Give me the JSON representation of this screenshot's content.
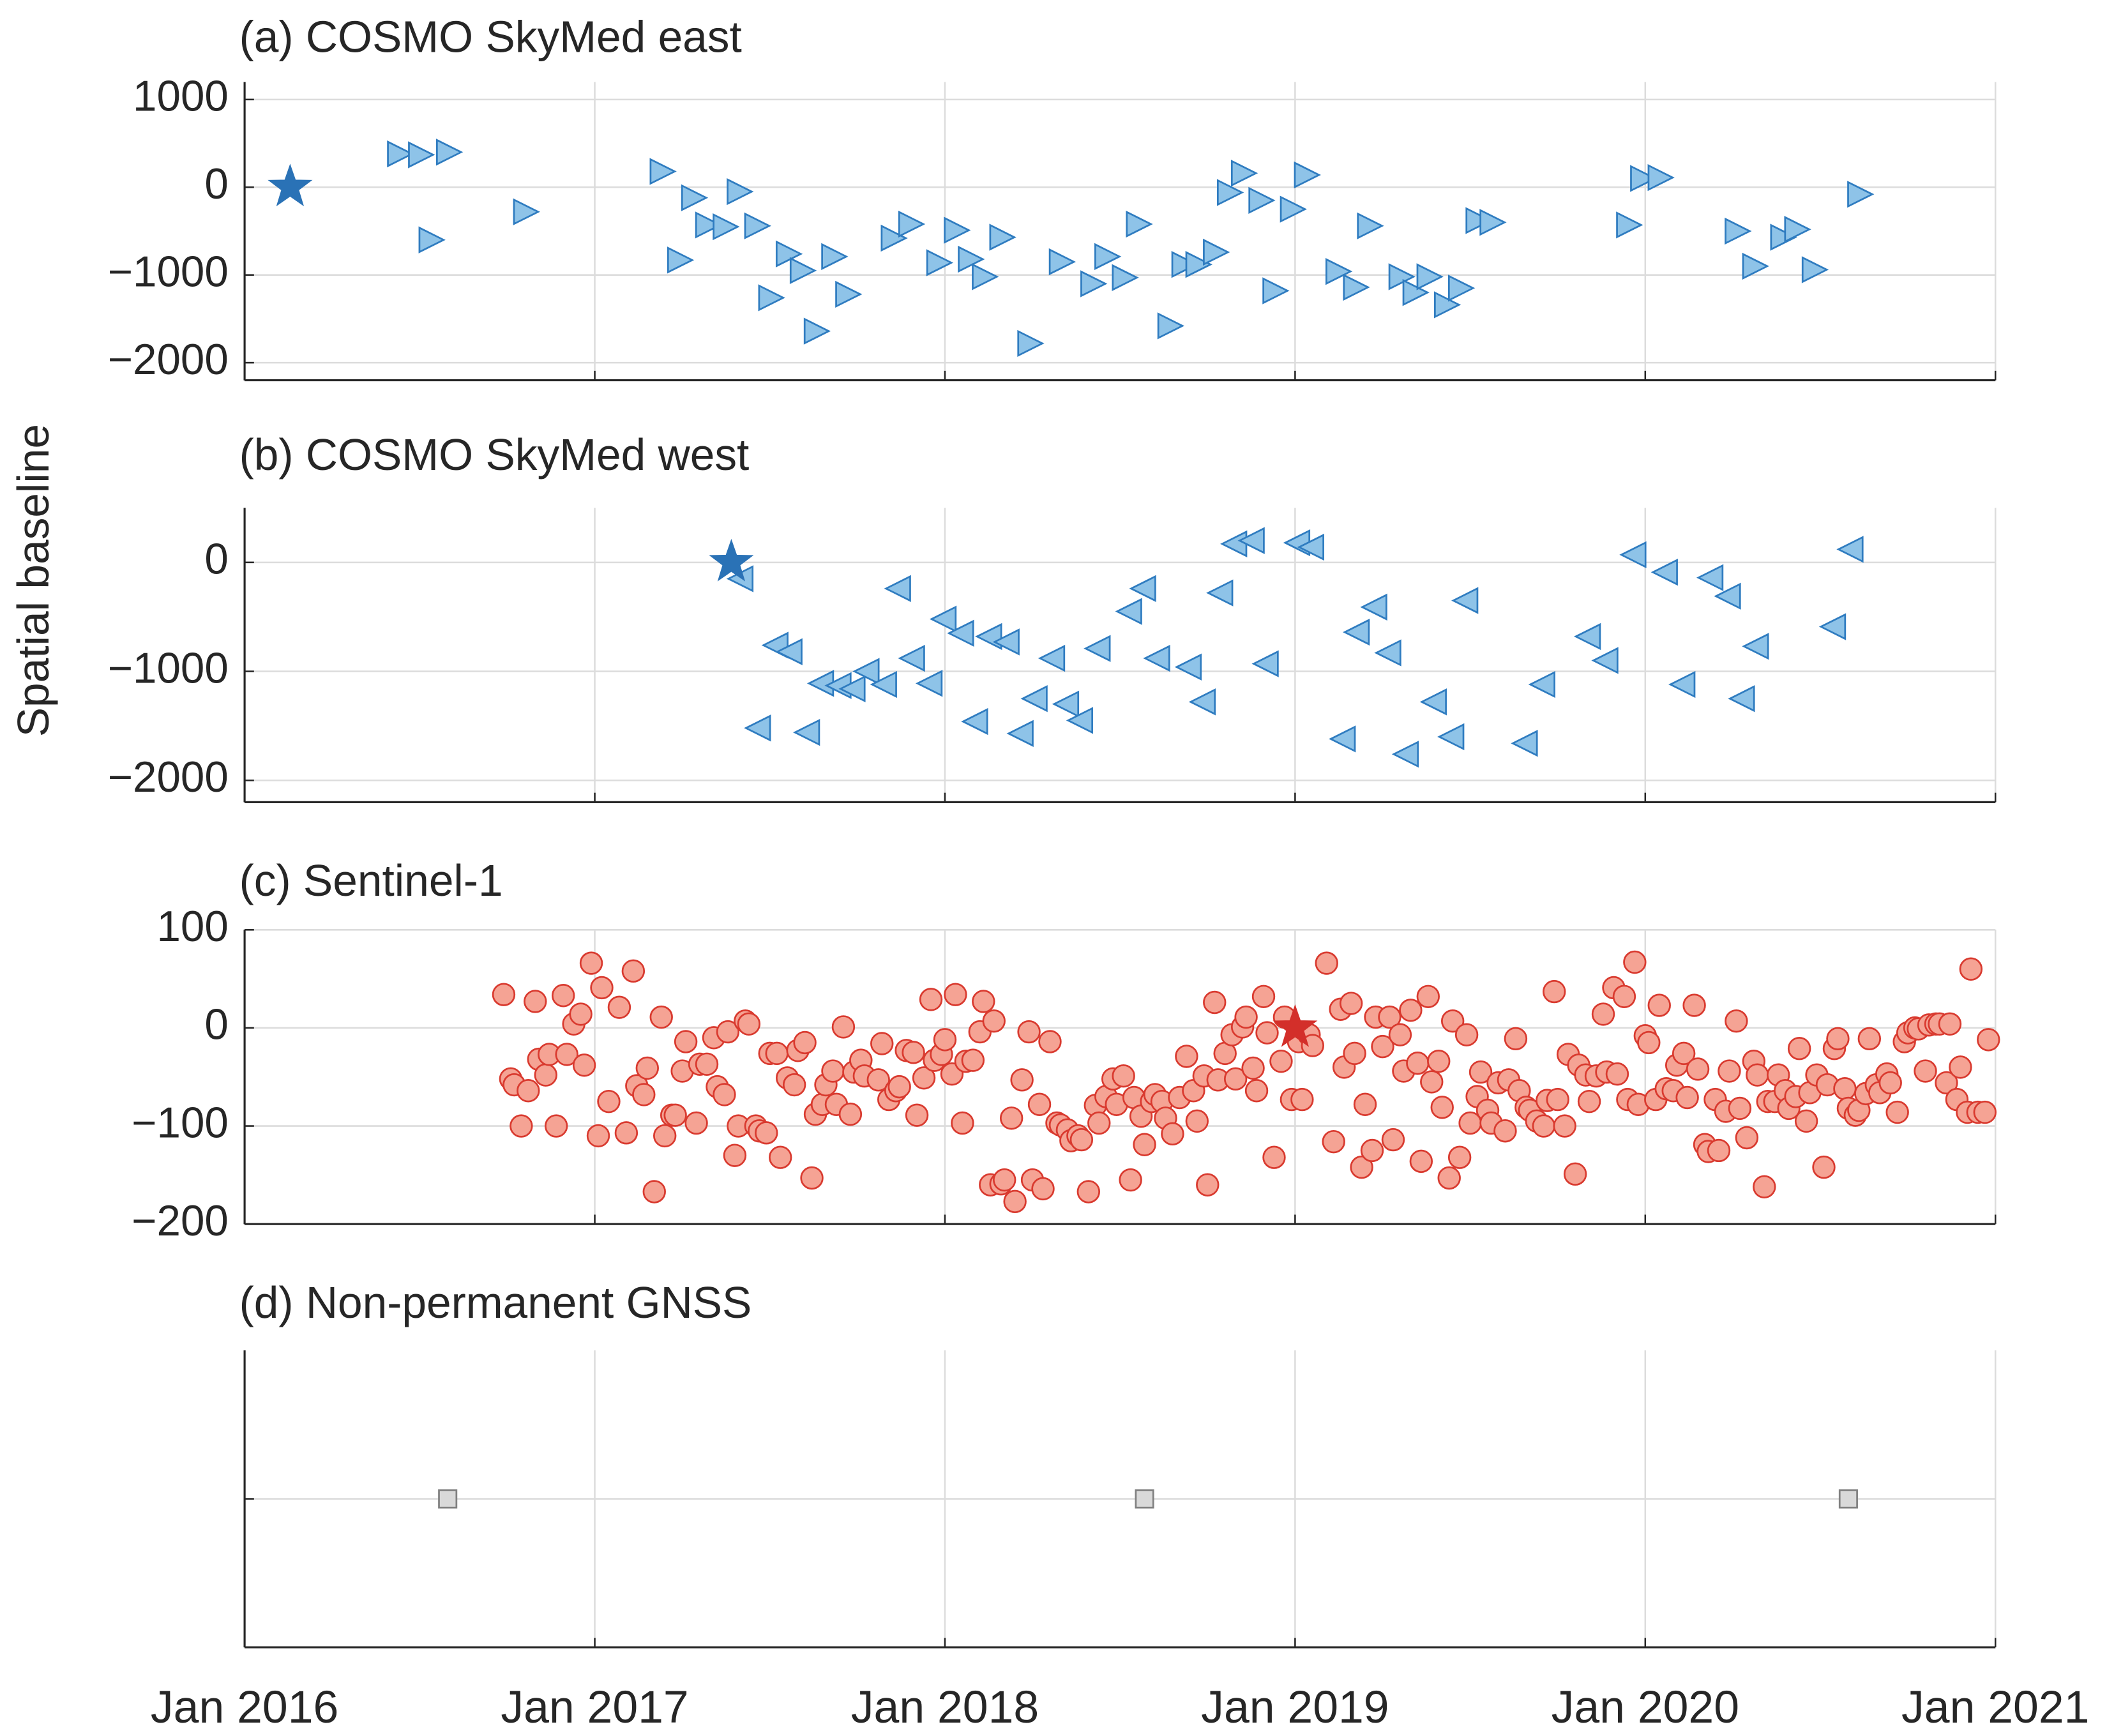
{
  "ylabel": "Spatial baseline",
  "xlim": [
    2016,
    2021
  ],
  "xticks": [
    {
      "value": 2016,
      "label": "Jan 2016"
    },
    {
      "value": 2017,
      "label": "Jan 2017"
    },
    {
      "value": 2018,
      "label": "Jan 2018"
    },
    {
      "value": 2019,
      "label": "Jan 2019"
    },
    {
      "value": 2020,
      "label": "Jan 2020"
    },
    {
      "value": 2021,
      "label": "Jan 2021"
    }
  ],
  "chart_data": [
    {
      "type": "scatter",
      "title": "(a) COSMO SkyMed east",
      "marker": "triangle-right",
      "color": "#8ec3e8",
      "edgecolor": "#2f7cc0",
      "grid": true,
      "ylim": [
        -2200,
        1200
      ],
      "yticks": [
        {
          "value": -2000,
          "label": "−2000"
        },
        {
          "value": -1000,
          "label": "−1000"
        },
        0,
        1000
      ],
      "reference": {
        "x": 2016.13,
        "y": 0,
        "color": "#2a72b6"
      },
      "x": [
        2016.44,
        2016.5,
        2016.58,
        2016.53,
        2016.8,
        2017.19,
        2017.24,
        2017.28,
        2017.32,
        2017.37,
        2017.41,
        2017.46,
        2017.5,
        2017.55,
        2017.59,
        2017.63,
        2017.68,
        2017.72,
        2017.85,
        2017.9,
        2017.98,
        2018.03,
        2018.07,
        2018.11,
        2018.16,
        2018.24,
        2018.33,
        2018.42,
        2018.46,
        2018.51,
        2018.55,
        2018.64,
        2018.68,
        2018.72,
        2018.77,
        2018.81,
        2018.85,
        2018.9,
        2018.94,
        2018.99,
        2019.03,
        2019.12,
        2019.17,
        2019.21,
        2019.3,
        2019.34,
        2019.38,
        2019.43,
        2019.47,
        2019.52,
        2019.56,
        2019.95,
        2019.99,
        2020.04,
        2020.26,
        2020.31,
        2020.39,
        2020.43,
        2020.48,
        2020.61
      ],
      "values": [
        380,
        370,
        400,
        -600,
        -280,
        180,
        -830,
        -120,
        -430,
        -450,
        -50,
        -440,
        -1260,
        -760,
        -950,
        -1640,
        -790,
        -1220,
        -580,
        -420,
        -860,
        -490,
        -820,
        -1020,
        -570,
        -1780,
        -850,
        -1100,
        -790,
        -1030,
        -420,
        -1580,
        -880,
        -880,
        -740,
        -60,
        160,
        -150,
        -1180,
        -250,
        140,
        -960,
        -1140,
        -440,
        -1020,
        -1200,
        -1020,
        -1340,
        -1150,
        -380,
        -400,
        -430,
        100,
        110,
        -500,
        -900,
        -570,
        -480,
        -940,
        -80
      ]
    },
    {
      "type": "scatter",
      "title": "(b) COSMO SkyMed west",
      "marker": "triangle-left",
      "color": "#8ec3e8",
      "edgecolor": "#2f7cc0",
      "grid": true,
      "ylim": [
        -2200,
        500
      ],
      "yticks": [
        {
          "value": -2000,
          "label": "−2000"
        },
        {
          "value": -1000,
          "label": "−1000"
        },
        0
      ],
      "reference": {
        "x": 2017.39,
        "y": 0,
        "color": "#2a72b6"
      },
      "x": [
        2017.42,
        2017.47,
        2017.52,
        2017.56,
        2017.61,
        2017.65,
        2017.7,
        2017.74,
        2017.78,
        2017.83,
        2017.87,
        2017.91,
        2017.96,
        2018.0,
        2018.05,
        2018.09,
        2018.13,
        2018.18,
        2018.22,
        2018.26,
        2018.31,
        2018.35,
        2018.39,
        2018.44,
        2018.53,
        2018.57,
        2018.61,
        2018.7,
        2018.74,
        2018.79,
        2018.83,
        2018.88,
        2018.92,
        2019.01,
        2019.05,
        2019.14,
        2019.18,
        2019.23,
        2019.27,
        2019.32,
        2019.4,
        2019.45,
        2019.49,
        2019.66,
        2019.71,
        2019.84,
        2019.89,
        2019.97,
        2020.06,
        2020.11,
        2020.19,
        2020.24,
        2020.28,
        2020.32,
        2020.54,
        2020.59
      ],
      "values": [
        -150,
        -1520,
        -760,
        -820,
        -1560,
        -1110,
        -1130,
        -1160,
        -1000,
        -1120,
        -240,
        -880,
        -1110,
        -520,
        -650,
        -1460,
        -680,
        -730,
        -1570,
        -1250,
        -880,
        -1300,
        -1450,
        -790,
        -450,
        -240,
        -880,
        -960,
        -1280,
        -280,
        170,
        200,
        -930,
        180,
        140,
        -1620,
        -640,
        -410,
        -830,
        -1760,
        -1280,
        -1600,
        -350,
        -1660,
        -1120,
        -680,
        -900,
        70,
        -90,
        -1120,
        -140,
        -310,
        -1250,
        -770,
        -590,
        120
      ]
    },
    {
      "type": "scatter",
      "title": "(c) Sentinel-1",
      "marker": "circle",
      "color": "#f5a394",
      "edgecolor": "#d93a2f",
      "grid": true,
      "ylim": [
        -200,
        100
      ],
      "yticks": [
        {
          "value": -200,
          "label": "−200"
        },
        {
          "value": -100,
          "label": "−100"
        },
        0,
        100
      ],
      "reference": {
        "x": 2019.0,
        "y": 0,
        "color": "#d32f2a"
      },
      "x": [
        2016.74,
        2016.76,
        2016.77,
        2016.79,
        2016.81,
        2016.83,
        2016.84,
        2016.86,
        2016.87,
        2016.89,
        2016.91,
        2016.92,
        2016.94,
        2016.96,
        2016.97,
        2016.99,
        2017.01,
        2017.02,
        2017.04,
        2017.07,
        2017.09,
        2017.11,
        2017.12,
        2017.14,
        2017.15,
        2017.17,
        2017.19,
        2017.2,
        2017.22,
        2017.23,
        2017.25,
        2017.26,
        2017.29,
        2017.3,
        2017.32,
        2017.34,
        2017.35,
        2017.37,
        2017.38,
        2017.4,
        2017.41,
        2017.43,
        2017.44,
        2017.46,
        2017.47,
        2017.49,
        2017.5,
        2017.52,
        2017.53,
        2017.55,
        2017.57,
        2017.58,
        2017.6,
        2017.62,
        2017.63,
        2017.65,
        2017.66,
        2017.68,
        2017.69,
        2017.71,
        2017.73,
        2017.74,
        2017.76,
        2017.77,
        2017.81,
        2017.82,
        2017.84,
        2017.86,
        2017.87,
        2017.89,
        2017.91,
        2017.92,
        2017.94,
        2017.96,
        2017.97,
        2017.99,
        2018.0,
        2018.02,
        2018.03,
        2018.05,
        2018.06,
        2018.08,
        2018.1,
        2018.11,
        2018.13,
        2018.14,
        2018.16,
        2018.17,
        2018.19,
        2018.2,
        2018.22,
        2018.24,
        2018.25,
        2018.27,
        2018.28,
        2018.3,
        2018.32,
        2018.33,
        2018.35,
        2018.36,
        2018.38,
        2018.39,
        2018.41,
        2018.43,
        2018.44,
        2018.46,
        2018.48,
        2018.49,
        2018.51,
        2018.53,
        2018.54,
        2018.56,
        2018.57,
        2018.59,
        2018.6,
        2018.62,
        2018.63,
        2018.65,
        2018.67,
        2018.69,
        2018.71,
        2018.72,
        2018.74,
        2018.75,
        2018.77,
        2018.78,
        2018.8,
        2018.82,
        2018.83,
        2018.85,
        2018.86,
        2018.88,
        2018.89,
        2018.91,
        2018.92,
        2018.94,
        2018.96,
        2018.97,
        2018.99,
        2019.01,
        2019.02,
        2019.04,
        2019.05,
        2019.09,
        2019.11,
        2019.13,
        2019.14,
        2019.16,
        2019.17,
        2019.19,
        2019.2,
        2019.22,
        2019.23,
        2019.25,
        2019.27,
        2019.28,
        2019.3,
        2019.31,
        2019.33,
        2019.35,
        2019.36,
        2019.38,
        2019.39,
        2019.41,
        2019.42,
        2019.44,
        2019.45,
        2019.47,
        2019.49,
        2019.5,
        2019.52,
        2019.53,
        2019.55,
        2019.56,
        2019.58,
        2019.6,
        2019.61,
        2019.63,
        2019.64,
        2019.66,
        2019.67,
        2019.69,
        2019.71,
        2019.72,
        2019.74,
        2019.75,
        2019.77,
        2019.78,
        2019.8,
        2019.81,
        2019.83,
        2019.84,
        2019.86,
        2019.88,
        2019.89,
        2019.91,
        2019.92,
        2019.94,
        2019.95,
        2019.97,
        2019.98,
        2020.0,
        2020.01,
        2020.03,
        2020.04,
        2020.06,
        2020.08,
        2020.09,
        2020.11,
        2020.12,
        2020.14,
        2020.15,
        2020.17,
        2020.18,
        2020.2,
        2020.21,
        2020.23,
        2020.24,
        2020.26,
        2020.27,
        2020.29,
        2020.31,
        2020.32,
        2020.34,
        2020.35,
        2020.37,
        2020.38,
        2020.4,
        2020.41,
        2020.43,
        2020.44,
        2020.46,
        2020.47,
        2020.49,
        2020.51,
        2020.52,
        2020.54,
        2020.55,
        2020.57,
        2020.58,
        2020.6,
        2020.61,
        2020.63,
        2020.64,
        2020.66,
        2020.67,
        2020.69,
        2020.7,
        2020.72,
        2020.74,
        2020.75,
        2020.77,
        2020.78,
        2020.8,
        2020.81,
        2020.83,
        2020.84,
        2020.86,
        2020.87,
        2020.89,
        2020.9,
        2020.92,
        2020.93,
        2020.95,
        2020.97,
        2020.98
      ],
      "values": [
        34,
        -52,
        -58,
        -100,
        -64,
        27,
        -32,
        -48,
        -27,
        -100,
        33,
        -27,
        4,
        14,
        -38,
        66,
        -110,
        41,
        -75,
        21,
        -107,
        58,
        -59,
        -68,
        -41,
        -167,
        11,
        -110,
        -89,
        -89,
        -44,
        -14,
        -97,
        -37,
        -37,
        -10,
        -60,
        -68,
        -4,
        -130,
        -100,
        7,
        4,
        -100,
        -105,
        -107,
        -26,
        -26,
        -132,
        -51,
        -58,
        -23,
        -15,
        -153,
        -88,
        -78,
        -58,
        -44,
        -78,
        1,
        -88,
        -45,
        -33,
        -49,
        -53,
        -16,
        -73,
        -64,
        -60,
        -23,
        -25,
        -89,
        -51,
        29,
        -33,
        -27,
        -12,
        -47,
        34,
        -97,
        -34,
        -33,
        -4,
        27,
        -160,
        7,
        -159,
        -155,
        -92,
        -177,
        -53,
        -4,
        -155,
        -78,
        -164,
        -14,
        -97,
        -99,
        -104,
        -115,
        -110,
        -114,
        -167,
        -79,
        -97,
        -70,
        -52,
        -78,
        -49,
        -155,
        -71,
        -90,
        -119,
        -75,
        -68,
        -75,
        -92,
        -108,
        -71,
        -29,
        -64,
        -95,
        -49,
        -160,
        26,
        -53,
        -26,
        -7,
        -52,
        1,
        11,
        -41,
        -64,
        32,
        -5,
        -132,
        -34,
        11,
        -73,
        -14,
        -73,
        -7,
        -18,
        66,
        -116,
        19,
        -40,
        25,
        -26,
        -142,
        -78,
        -125,
        11,
        -19,
        11,
        -114,
        -7,
        -44,
        18,
        -36,
        -136,
        32,
        -55,
        -34,
        -81,
        -153,
        7,
        -132,
        -7,
        -97,
        -70,
        -45,
        -84,
        -97,
        -56,
        -105,
        -53,
        -11,
        -64,
        -81,
        -84,
        -95,
        -100,
        -74,
        37,
        -73,
        -100,
        -27,
        -149,
        -38,
        -48,
        -75,
        -49,
        14,
        -45,
        41,
        -47,
        32,
        -73,
        67,
        -78,
        -8,
        -15,
        -73,
        23,
        -62,
        -64,
        -38,
        -26,
        -71,
        23,
        -42,
        -119,
        -126,
        -73,
        -125,
        -85,
        -44,
        7,
        -82,
        -112,
        -34,
        -48,
        -162,
        -75,
        -75,
        -48,
        -64,
        -82,
        -70,
        -21,
        -95,
        -66,
        -48,
        -142,
        -58,
        -21,
        -11,
        -62,
        -82,
        -89,
        -84,
        -67,
        -11,
        -58,
        -66,
        -47,
        -56,
        -86,
        -14,
        -5,
        0,
        -1,
        -44,
        3,
        4,
        4,
        -56,
        4,
        -73,
        -40,
        -86,
        60,
        -86,
        -86,
        -12
      ]
    },
    {
      "type": "scatter",
      "title": "(d) Non-permanent GNSS",
      "marker": "square",
      "color": "#d9d9d9",
      "edgecolor": "#808080",
      "grid": true,
      "ylim": [
        0,
        2
      ],
      "yticks": [
        1
      ],
      "ytick_labels": false,
      "x": [
        2016.58,
        2018.57,
        2020.58
      ],
      "values": [
        1,
        1,
        1
      ]
    }
  ]
}
